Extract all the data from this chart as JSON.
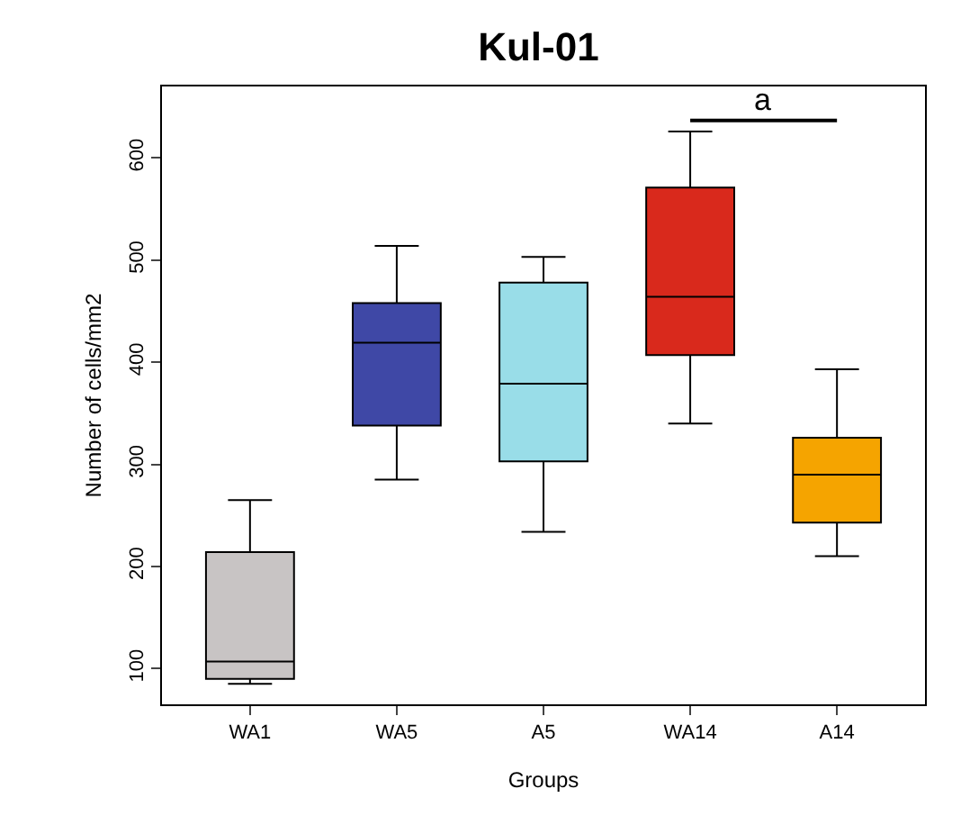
{
  "chart_data": {
    "type": "box",
    "title": "Kul-01",
    "xlabel": "Groups",
    "ylabel": "Number of cells/mm2",
    "categories": [
      "WA1",
      "WA5",
      "A5",
      "WA14",
      "A14"
    ],
    "colors": [
      "#c8c4c4",
      "#3f48a6",
      "#99dde8",
      "#d9291c",
      "#f5a400"
    ],
    "boxes": [
      {
        "low": 85,
        "q1": 90,
        "median": 107,
        "q3": 214,
        "high": 265
      },
      {
        "low": 285,
        "q1": 338,
        "median": 419,
        "q3": 458,
        "high": 514
      },
      {
        "low": 234,
        "q1": 303,
        "median": 379,
        "q3": 478,
        "high": 503
      },
      {
        "low": 340,
        "q1": 407,
        "median": 464,
        "q3": 571,
        "high": 626
      },
      {
        "low": 210,
        "q1": 243,
        "median": 290,
        "q3": 326,
        "high": 393
      }
    ],
    "ylim": [
      65,
      670
    ],
    "yticks": [
      100,
      200,
      300,
      400,
      500,
      600
    ],
    "grid": false,
    "legend": false,
    "annotations": [
      "a"
    ]
  }
}
